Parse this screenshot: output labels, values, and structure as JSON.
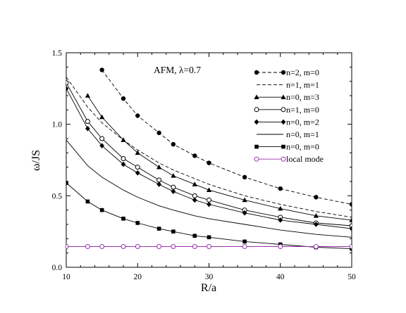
{
  "chart_data": {
    "type": "line",
    "annotation": "AFM, λ=0.7",
    "xlabel": "R/a",
    "ylabel": "ω/JS",
    "xlim": [
      10,
      50
    ],
    "ylim": [
      0.0,
      1.5
    ],
    "xticks": [
      10,
      20,
      30,
      40,
      50
    ],
    "xtick_labels": [
      "10",
      "20",
      "30",
      "40",
      "50"
    ],
    "yticks": [
      0.0,
      0.5,
      1.0,
      1.5
    ],
    "ytick_labels": [
      "0.0",
      "0.5",
      "1.0",
      "1.5"
    ],
    "grid": false,
    "legend_position": "top-right",
    "series": [
      {
        "name": "n=2, m=0",
        "color": "#000000",
        "line": "dashed",
        "marker": "filled-circle",
        "x": [
          15,
          18,
          20,
          23,
          25,
          28,
          30,
          35,
          40,
          45,
          50
        ],
        "y": [
          1.38,
          1.18,
          1.06,
          0.94,
          0.86,
          0.78,
          0.73,
          0.63,
          0.55,
          0.49,
          0.44
        ]
      },
      {
        "name": "n=1, m=1",
        "color": "#000000",
        "line": "dashed",
        "marker": "none",
        "x": [
          10,
          13,
          15,
          18,
          20,
          23,
          25,
          28,
          30,
          35,
          40,
          45,
          50
        ],
        "y": [
          1.33,
          1.12,
          1.01,
          0.89,
          0.82,
          0.73,
          0.68,
          0.62,
          0.58,
          0.5,
          0.44,
          0.39,
          0.35
        ]
      },
      {
        "name": "n=0, m=3",
        "color": "#000000",
        "line": "solid",
        "marker": "filled-triangle",
        "x": [
          13,
          15,
          18,
          20,
          23,
          25,
          28,
          30,
          35,
          40,
          45,
          50
        ],
        "y": [
          1.2,
          1.05,
          0.89,
          0.8,
          0.7,
          0.64,
          0.58,
          0.54,
          0.47,
          0.41,
          0.36,
          0.33
        ]
      },
      {
        "name": "n=1, m=0",
        "color": "#000000",
        "line": "solid",
        "marker": "open-circle",
        "x": [
          10,
          13,
          15,
          18,
          20,
          23,
          25,
          28,
          30,
          35,
          40,
          45,
          50
        ],
        "y": [
          1.29,
          1.02,
          0.9,
          0.76,
          0.7,
          0.61,
          0.56,
          0.5,
          0.47,
          0.4,
          0.35,
          0.31,
          0.29
        ]
      },
      {
        "name": "n=0, m=2",
        "color": "#000000",
        "line": "solid",
        "marker": "filled-diamond",
        "x": [
          10,
          13,
          15,
          18,
          20,
          23,
          25,
          28,
          30,
          35,
          40,
          45,
          50
        ],
        "y": [
          1.25,
          0.97,
          0.85,
          0.72,
          0.66,
          0.58,
          0.53,
          0.47,
          0.44,
          0.38,
          0.33,
          0.3,
          0.27
        ]
      },
      {
        "name": "n=0, m=1",
        "color": "#000000",
        "line": "solid",
        "marker": "none",
        "x": [
          10,
          13,
          15,
          18,
          20,
          23,
          25,
          28,
          30,
          35,
          40,
          45,
          50
        ],
        "y": [
          0.89,
          0.71,
          0.63,
          0.54,
          0.49,
          0.43,
          0.4,
          0.36,
          0.34,
          0.3,
          0.26,
          0.23,
          0.21
        ]
      },
      {
        "name": "n=0, m=0",
        "color": "#000000",
        "line": "solid",
        "marker": "filled-square",
        "x": [
          10,
          13,
          15,
          18,
          20,
          23,
          25,
          28,
          30,
          35,
          40,
          45,
          50
        ],
        "y": [
          0.59,
          0.46,
          0.4,
          0.34,
          0.31,
          0.27,
          0.25,
          0.22,
          0.21,
          0.18,
          0.16,
          0.14,
          0.13
        ]
      },
      {
        "name": "local mode",
        "color": "#9b30b0",
        "line": "solid",
        "marker": "open-circle",
        "x": [
          10,
          13,
          15,
          18,
          20,
          23,
          25,
          28,
          30,
          35,
          40,
          45,
          50
        ],
        "y": [
          0.145,
          0.145,
          0.145,
          0.145,
          0.145,
          0.145,
          0.145,
          0.145,
          0.145,
          0.145,
          0.145,
          0.145,
          0.145
        ]
      }
    ]
  }
}
